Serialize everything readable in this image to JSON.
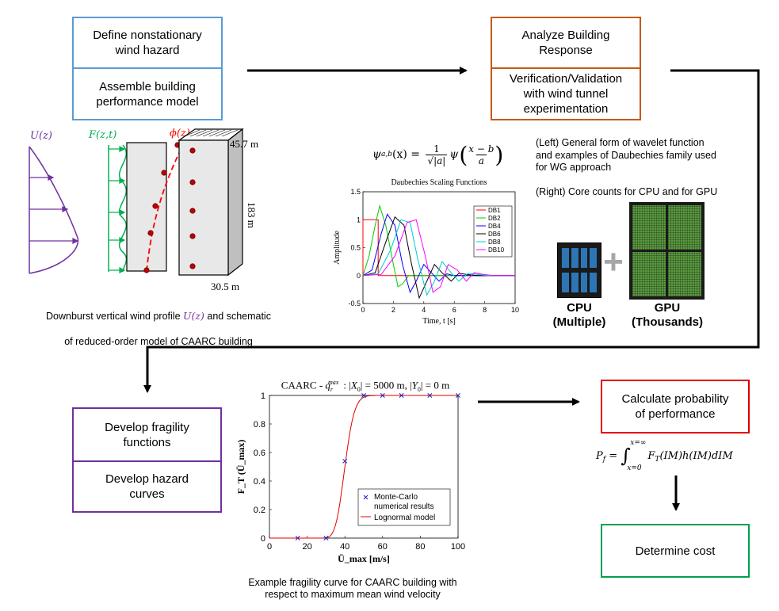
{
  "colors": {
    "blue": "#5b9bd5",
    "orange": "#c55a11",
    "purple": "#7030a0",
    "red": "#e00000",
    "green": "#00a050",
    "profile_purple": "#7030a0",
    "force_green": "#00b050",
    "mode_red": "#ff0000",
    "gpu_green": "#6aa84f",
    "cpu_blue": "#2e75b6"
  },
  "boxes": {
    "hazard": "Define nonstationary\nwind hazard",
    "assemble": "Assemble building\nperformance model",
    "analyze": "Analyze Building\nResponse",
    "verify": "Verification/Validation\nwith wind tunnel\nexperimentation",
    "fragility": "Develop fragility\nfunctions",
    "hazard_curves": "Develop hazard\ncurves",
    "probability": "Calculate probability\nof performance",
    "cost": "Determine cost"
  },
  "building": {
    "u_label": "U(z)",
    "f_label": "F(z,t)",
    "phi_label": "ϕ(z)",
    "dim_top": "45.7 m",
    "dim_height": "183 m",
    "dim_bottom": "30.5 m",
    "caption_line1_pre": "Downburst vertical wind profile ",
    "caption_line1_var": "U(z)",
    "caption_line1_post": " and schematic",
    "caption_line2": "of reduced-order model of CAARC building"
  },
  "wavelet": {
    "formula_lhs": "ψ",
    "formula_sub": "a,b",
    "formula_arg": "(x) = ",
    "formula_num": "1",
    "formula_den": "√|a|",
    "formula_psi": "ψ",
    "formula_frac_num": "x − b",
    "formula_frac_den": "a",
    "note": "(Left) General form of wavelet function\nand examples of Daubechies family used\nfor WG approach\n\n(Right) Core counts for CPU and for GPU",
    "cpu_label": "CPU\n(Multiple)",
    "gpu_label": "GPU\n(Thousands)",
    "plus": "+"
  },
  "chart_data": [
    {
      "type": "line",
      "title": "Daubechies Scaling Functions",
      "xlabel": "Time, t [s]",
      "ylabel": "Amplitude",
      "xlim": [
        0,
        10
      ],
      "ylim": [
        -0.5,
        1.5
      ],
      "xticks": [
        "0",
        "2",
        "4",
        "6",
        "8",
        "10"
      ],
      "yticks": [
        "-0.5",
        "0",
        "0.5",
        "1",
        "1.5"
      ],
      "legend_position": "top-right",
      "series": [
        {
          "name": "DB1",
          "color": "#ff0000",
          "x": [
            0,
            0,
            1,
            1,
            10
          ],
          "y": [
            0,
            1,
            1,
            0,
            0
          ]
        },
        {
          "name": "DB2",
          "color": "#00cc00",
          "x": [
            0,
            0.4,
            0.8,
            1.1,
            1.5,
            2,
            2.3,
            2.6,
            3,
            10
          ],
          "y": [
            0,
            0.35,
            0.9,
            1.25,
            0.9,
            0.2,
            -0.2,
            -0.15,
            0,
            0
          ]
        },
        {
          "name": "DB4",
          "color": "#0000ff",
          "x": [
            0,
            0.6,
            1.2,
            1.6,
            2.1,
            2.6,
            3.1,
            3.5,
            4,
            4.5,
            5,
            5.5,
            6,
            10
          ],
          "y": [
            0,
            0.1,
            0.75,
            1.1,
            0.9,
            0.2,
            -0.3,
            -0.1,
            0.2,
            0.05,
            -0.1,
            0.03,
            0,
            0
          ]
        },
        {
          "name": "DB6",
          "color": "#000000",
          "x": [
            0,
            0.8,
            1.5,
            2.1,
            2.7,
            3.2,
            3.7,
            4.2,
            4.7,
            5.2,
            5.8,
            6.3,
            6.8,
            7.5,
            10
          ],
          "y": [
            0,
            0.05,
            0.6,
            1.05,
            0.9,
            0.2,
            -0.4,
            -0.1,
            0.2,
            0.05,
            -0.1,
            0.04,
            0.02,
            0,
            0
          ]
        },
        {
          "name": "DB8",
          "color": "#00cccc",
          "x": [
            0,
            1,
            1.8,
            2.5,
            3.1,
            3.6,
            4.2,
            4.7,
            5.2,
            5.8,
            6.3,
            6.9,
            7.5,
            8.2,
            10
          ],
          "y": [
            0,
            0.03,
            0.45,
            1,
            0.95,
            0.3,
            -0.35,
            -0.1,
            0.25,
            0.05,
            -0.1,
            0.04,
            0.02,
            0,
            0
          ]
        },
        {
          "name": "DB10",
          "color": "#ff00ff",
          "x": [
            0,
            1.2,
            2.1,
            2.9,
            3.5,
            4.1,
            4.6,
            5.1,
            5.6,
            6.2,
            6.8,
            7.3,
            7.9,
            8.6,
            10
          ],
          "y": [
            0,
            0.02,
            0.35,
            0.95,
            1,
            0.35,
            -0.3,
            -0.2,
            0.2,
            0.1,
            -0.1,
            0.05,
            0.02,
            0,
            0
          ]
        }
      ]
    },
    {
      "type": "line",
      "title": "CAARC - q_r^max: |X_0| = 5000 m, |Y_0| = 0 m",
      "xlabel": "Ū_max [m/s]",
      "ylabel": "F_T (Ū_max)",
      "xlim": [
        0,
        100
      ],
      "ylim": [
        0,
        1
      ],
      "xticks": [
        "0",
        "20",
        "40",
        "60",
        "80",
        "100"
      ],
      "yticks": [
        "0",
        "0.2",
        "0.4",
        "0.6",
        "0.8",
        "1"
      ],
      "legend_position": "bottom-right",
      "series": [
        {
          "name": "Monte-Carlo numerical results",
          "marker": "x",
          "color": "#2020c0",
          "x": [
            15,
            30,
            40,
            50,
            60,
            70,
            85,
            100
          ],
          "y": [
            0,
            0,
            0.54,
            1,
            1,
            1,
            1,
            1
          ]
        },
        {
          "name": "Lognormal model",
          "color": "#e00000",
          "median": 40,
          "beta": 0.1
        }
      ],
      "caption": "Example fragility curve for CAARC building with\nrespect to maximum mean wind velocity"
    }
  ],
  "probability_formula": {
    "lhs": "P",
    "lhs_sub": "f",
    "eq": " = ",
    "upper": "x=∞",
    "lower": "x=0",
    "integrand": "F",
    "integrand_sub": "T",
    "rest": "(IM)h(IM)dIM"
  }
}
